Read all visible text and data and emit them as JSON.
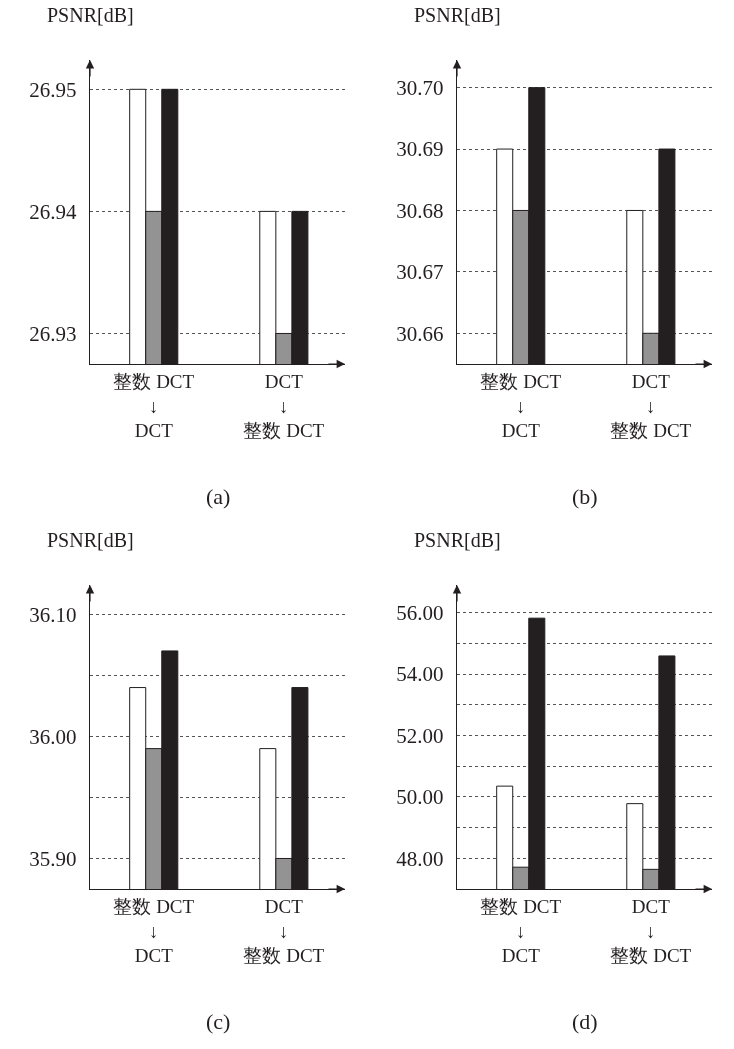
{
  "chart_data": [
    {
      "type": "bar",
      "ylabel": "PSNR[dB]",
      "annotations": [
        "(a)"
      ],
      "categories": [
        "整数 DCT\n↓\nDCT",
        "DCT\n↓\n整数 DCT"
      ],
      "grid": "y",
      "legend": false,
      "ylim": [
        26.9275,
        26.9524
      ],
      "yticks": [
        26.93,
        26.94,
        26.95
      ],
      "series": [
        {
          "color": "#ffffff",
          "values": [
            26.95,
            26.94
          ]
        },
        {
          "color": "#939393",
          "values": [
            26.94,
            26.93
          ]
        },
        {
          "color": "#231f20",
          "values": [
            26.95,
            26.94
          ]
        }
      ]
    },
    {
      "type": "bar",
      "ylabel": "PSNR[dB]",
      "annotations": [
        "(b)"
      ],
      "categories": [
        "整数 DCT\n↓\nDCT",
        "DCT\n↓\n整数 DCT"
      ],
      "grid": "y",
      "legend": false,
      "ylim": [
        30.655,
        30.7045
      ],
      "yticks": [
        30.66,
        30.67,
        30.68,
        30.69,
        {
          "value": 30.7,
          "label": "30.70"
        }
      ],
      "series": [
        {
          "color": "#ffffff",
          "values": [
            30.69,
            30.68
          ]
        },
        {
          "color": "#939393",
          "values": [
            30.68,
            30.66
          ]
        },
        {
          "color": "#231f20",
          "values": [
            30.7,
            30.69
          ]
        }
      ]
    },
    {
      "type": "bar",
      "ylabel": "PSNR[dB]",
      "annotations": [
        "(c)"
      ],
      "categories": [
        "整数 DCT\n↓\nDCT",
        "DCT\n↓\n整数 DCT"
      ],
      "grid": "y",
      "legend": false,
      "ylim": [
        35.875,
        36.124
      ],
      "yticks": [
        {
          "value": 35.9,
          "label": "35.90"
        },
        {
          "value": 35.95,
          "label": null
        },
        {
          "value": 36,
          "label": "36.00"
        },
        {
          "value": 36.05,
          "label": null
        },
        {
          "value": 36.1,
          "label": "36.10"
        }
      ],
      "series": [
        {
          "color": "#ffffff",
          "values": [
            36.04,
            35.99
          ]
        },
        {
          "color": "#939393",
          "values": [
            35.99,
            35.9
          ]
        },
        {
          "color": "#231f20",
          "values": [
            36.07,
            36.04
          ]
        }
      ]
    },
    {
      "type": "bar",
      "ylabel": "PSNR[dB]",
      "annotations": [
        "(d)"
      ],
      "categories": [
        "整数 DCT\n↓\nDCT",
        "DCT\n↓\n整数 DCT"
      ],
      "grid": "y",
      "legend": false,
      "ylim": [
        47,
        56.9
      ],
      "yticks": [
        {
          "value": 48,
          "label": "48.00"
        },
        {
          "value": 49,
          "label": null
        },
        {
          "value": 50,
          "label": "50.00"
        },
        {
          "value": 51,
          "label": null
        },
        {
          "value": 52,
          "label": "52.00"
        },
        {
          "value": 53,
          "label": null
        },
        {
          "value": 54,
          "label": "54.00"
        },
        {
          "value": 55,
          "label": null
        },
        {
          "value": 56,
          "label": "56.00"
        }
      ],
      "series": [
        {
          "color": "#ffffff",
          "values": [
            50.35,
            49.78
          ]
        },
        {
          "color": "#939393",
          "values": [
            47.71,
            47.64
          ]
        },
        {
          "color": "#231f20",
          "values": [
            55.82,
            54.59
          ]
        }
      ]
    }
  ]
}
